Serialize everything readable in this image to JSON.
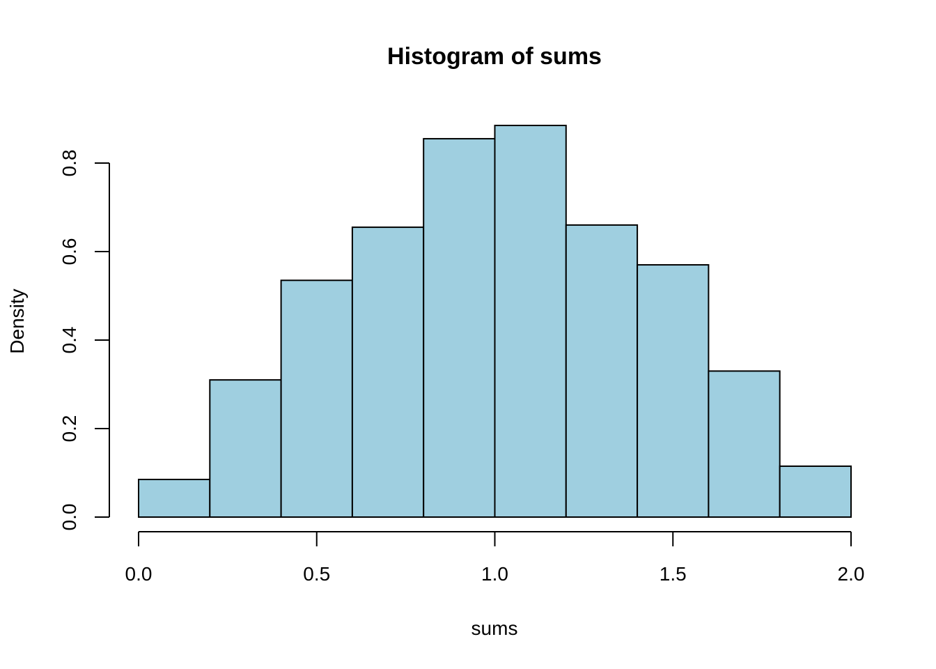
{
  "chart_data": {
    "type": "bar",
    "title": "Histogram of sums",
    "xlabel": "sums",
    "ylabel": "Density",
    "bins": [
      {
        "x0": 0.0,
        "x1": 0.2,
        "density": 0.085
      },
      {
        "x0": 0.2,
        "x1": 0.4,
        "density": 0.31
      },
      {
        "x0": 0.4,
        "x1": 0.6,
        "density": 0.535
      },
      {
        "x0": 0.6,
        "x1": 0.8,
        "density": 0.655
      },
      {
        "x0": 0.8,
        "x1": 1.0,
        "density": 0.855
      },
      {
        "x0": 1.0,
        "x1": 1.2,
        "density": 0.885
      },
      {
        "x0": 1.2,
        "x1": 1.4,
        "density": 0.66
      },
      {
        "x0": 1.4,
        "x1": 1.6,
        "density": 0.57
      },
      {
        "x0": 1.6,
        "x1": 1.8,
        "density": 0.33
      },
      {
        "x0": 1.8,
        "x1": 2.0,
        "density": 0.115
      }
    ],
    "xticks": [
      "0.0",
      "0.5",
      "1.0",
      "1.5",
      "2.0"
    ],
    "yticks": [
      "0.0",
      "0.2",
      "0.4",
      "0.6",
      "0.8"
    ],
    "xlim": [
      0,
      2
    ],
    "ylim": [
      0,
      0.8
    ],
    "bar_color": "#9FCFE0",
    "edge_color": "#000000",
    "grid": false
  }
}
